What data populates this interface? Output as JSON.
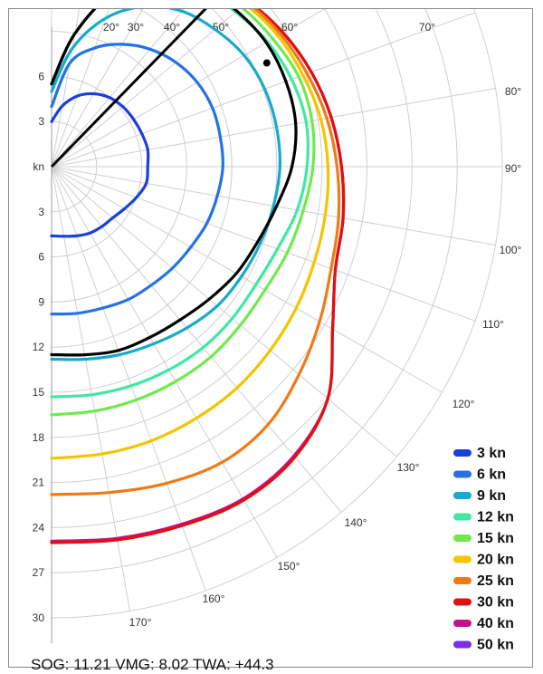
{
  "chart_data": {
    "type": "polar-line",
    "radial_unit": "kn",
    "radial_ticks": [
      3,
      6,
      9,
      12,
      15,
      18,
      21,
      24,
      27,
      30
    ],
    "radial_max": 30,
    "angle_ticks": [
      {
        "deg": 20,
        "label": "20°"
      },
      {
        "deg": 30,
        "label": "30°"
      },
      {
        "deg": 40,
        "label": "40°"
      },
      {
        "deg": 50,
        "label": "50°"
      },
      {
        "deg": 60,
        "label": "60°"
      },
      {
        "deg": 70,
        "label": "70°"
      },
      {
        "deg": 80,
        "label": "80°"
      },
      {
        "deg": 90,
        "label": "90°"
      },
      {
        "deg": 100,
        "label": "100°"
      },
      {
        "deg": 110,
        "label": "110°"
      },
      {
        "deg": 120,
        "label": "120°"
      },
      {
        "deg": 130,
        "label": "130°"
      },
      {
        "deg": 140,
        "label": "140°"
      },
      {
        "deg": 150,
        "label": "150°"
      },
      {
        "deg": 160,
        "label": "160°"
      },
      {
        "deg": 170,
        "label": "170°"
      }
    ],
    "angles": [
      0,
      10,
      20,
      30,
      40,
      50,
      60,
      70,
      80,
      90,
      100,
      110,
      120,
      130,
      140,
      150,
      160,
      170,
      180
    ],
    "series": [
      {
        "name": "3 kn",
        "color": "#1a3fdc",
        "values": [
          3.0,
          4.1,
          5.0,
          5.6,
          6.0,
          6.2,
          6.3,
          6.4,
          6.5,
          6.4,
          6.4,
          6.0,
          5.6,
          5.3,
          5.2,
          5.1,
          4.9,
          4.7,
          4.6
        ]
      },
      {
        "name": "6 kn",
        "color": "#2471e8",
        "values": [
          4.0,
          7.0,
          8.4,
          9.4,
          10.2,
          10.8,
          11.2,
          11.4,
          11.4,
          11.4,
          11.2,
          11.0,
          10.7,
          10.5,
          10.3,
          10.2,
          10.0,
          9.9,
          9.8
        ]
      },
      {
        "name": "9 kn",
        "color": "#17aacc",
        "values": [
          5.0,
          8.0,
          10.5,
          12.3,
          13.5,
          14.2,
          14.8,
          15.1,
          15.2,
          15.2,
          15.0,
          14.8,
          14.6,
          14.4,
          14.0,
          13.6,
          13.3,
          13.0,
          12.8
        ]
      },
      {
        "name": "12 kn",
        "color": "#3fe8a4",
        "values": [
          5.5,
          9.0,
          12.5,
          14.5,
          15.5,
          16.0,
          16.6,
          17.0,
          17.2,
          17.0,
          16.6,
          16.0,
          15.7,
          15.7,
          15.7,
          15.6,
          15.5,
          15.4,
          15.3
        ]
      },
      {
        "name": "15 kn",
        "color": "#6eea4c",
        "values": [
          5.5,
          9.0,
          12.5,
          14.7,
          15.8,
          16.5,
          17.0,
          17.5,
          17.6,
          17.4,
          17.0,
          16.7,
          16.4,
          16.4,
          16.5,
          16.5,
          16.5,
          16.5,
          16.5
        ]
      },
      {
        "name": "20 kn",
        "color": "#f5c400",
        "values": [
          5.5,
          9.0,
          12.5,
          14.8,
          16.0,
          16.8,
          17.4,
          17.8,
          18.2,
          18.4,
          18.5,
          18.6,
          18.8,
          19.0,
          19.2,
          19.3,
          19.4,
          19.4,
          19.4
        ]
      },
      {
        "name": "25 kn",
        "color": "#f07a16",
        "values": [
          5.5,
          9.0,
          12.5,
          14.9,
          16.2,
          17.0,
          17.6,
          18.1,
          18.6,
          19.0,
          19.4,
          19.8,
          20.6,
          21.5,
          22.4,
          22.7,
          22.4,
          22.0,
          21.8
        ]
      },
      {
        "name": "30 kn",
        "color": "#e01010",
        "values": [
          5.5,
          9.0,
          12.5,
          15.0,
          16.3,
          17.1,
          17.8,
          18.4,
          18.9,
          19.3,
          19.7,
          20.1,
          21.6,
          24.0,
          25.2,
          25.6,
          25.4,
          25.2,
          25.0
        ]
      },
      {
        "name": "40 kn",
        "color": "#c4128c",
        "values": [
          5.5,
          9.0,
          12.5,
          15.0,
          16.3,
          17.1,
          17.8,
          18.4,
          18.9,
          19.3,
          19.7,
          20.1,
          21.6,
          24.0,
          25.1,
          25.5,
          25.3,
          25.1,
          24.9
        ]
      },
      {
        "name": "50 kn",
        "color": "#7b2ff0",
        "values": []
      }
    ],
    "current_curve": {
      "color": "#000000",
      "values": [
        5.5,
        9.0,
        12.5,
        14.6,
        15.6,
        16.1,
        16.5,
        16.6,
        16.5,
        16.0,
        15.2,
        14.6,
        14.2,
        13.7,
        13.3,
        13.1,
        13.0,
        12.7,
        12.5
      ]
    },
    "vmg_line": {
      "angle": 44.3,
      "length": 20.5
    },
    "current_point": {
      "angle": 44.3,
      "speed": 11.21
    },
    "legend_position": "bottom-right"
  },
  "readout": {
    "sog_label": "SOG:",
    "sog_value": "11.21",
    "vmg_label": "VMG:",
    "vmg_value": "8.02",
    "twa_label": "TWA:",
    "twa_value": "+44.3"
  }
}
